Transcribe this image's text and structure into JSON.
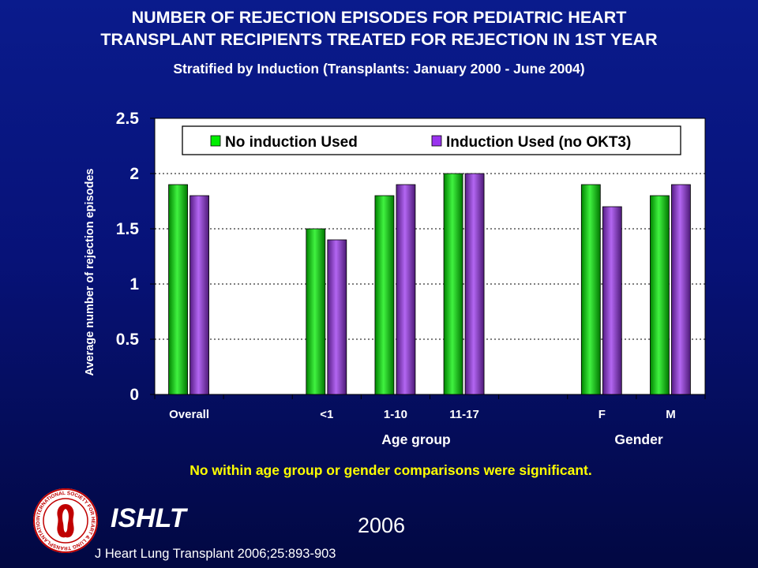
{
  "slide": {
    "title_line1": "NUMBER OF REJECTION EPISODES FOR PEDIATRIC HEART",
    "title_line2": "TRANSPLANT RECIPIENTS TREATED FOR REJECTION IN 1ST YEAR",
    "subtitle": "Stratified by Induction  (Transplants: January 2000 - June 2004)",
    "note": "No within age group or gender comparisons were significant.",
    "org": "ISHLT",
    "year": "2006",
    "citation": "J Heart Lung Transplant 2006;25:893-903",
    "logo_icon": "ishlt-logo-icon",
    "logo_text": "INTERNATIONAL SOCIETY FOR HEART & LUNG TRANSPLANTATION"
  },
  "chart_data": {
    "type": "bar",
    "title": "",
    "xlabel": "",
    "ylabel": "Average number of rejection episodes",
    "ylim": [
      0,
      2.5
    ],
    "yticks": [
      "0",
      "0.5",
      "1",
      "1.5",
      "2",
      "2.5"
    ],
    "grid": true,
    "legend_position": "top",
    "categories": [
      "Overall",
      "",
      "<1",
      "1-10",
      "11-17",
      "",
      "F",
      "M"
    ],
    "group_labels": [
      {
        "label": "Age group"
      },
      {
        "label": "Gender"
      }
    ],
    "series": [
      {
        "name": "No induction Used",
        "color": "#00ee00",
        "values": [
          1.9,
          null,
          1.5,
          1.8,
          2.0,
          null,
          1.9,
          1.8
        ]
      },
      {
        "name": "Induction Used (no OKT3)",
        "color": "#9933ee",
        "values": [
          1.8,
          null,
          1.4,
          1.9,
          2.0,
          null,
          1.7,
          1.9
        ]
      }
    ]
  }
}
